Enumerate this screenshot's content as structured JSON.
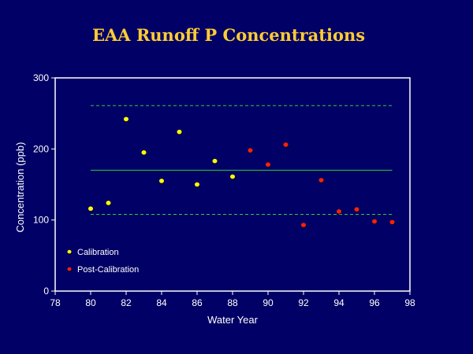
{
  "chart_data": {
    "type": "scatter",
    "title": "EAA Runoff P Concentrations",
    "xlabel": "Water Year",
    "ylabel": "Concentration (ppb)",
    "xlim": [
      78,
      98
    ],
    "ylim": [
      0,
      300
    ],
    "x_ticks": [
      "78",
      "80",
      "82",
      "84",
      "86",
      "88",
      "90",
      "92",
      "94",
      "96",
      "98"
    ],
    "y_ticks": [
      "0",
      "100",
      "200",
      "300"
    ],
    "grid": false,
    "legend_position": "bottom-left",
    "series": [
      {
        "name": "Calibration",
        "color": "#ffff00",
        "x": [
          80,
          81,
          82,
          83,
          84,
          85,
          86,
          87,
          88
        ],
        "y": [
          116,
          124,
          242,
          195,
          155,
          224,
          150,
          183,
          161
        ]
      },
      {
        "name": "Post-Calibration",
        "color": "#ff2200",
        "x": [
          89,
          90,
          91,
          92,
          93,
          94,
          95,
          96,
          97
        ],
        "y": [
          198,
          178,
          206,
          93,
          156,
          112,
          115,
          98,
          97
        ]
      }
    ],
    "reference_lines": [
      {
        "style": "solid",
        "color": "#33cc33",
        "x": [
          80,
          97
        ],
        "y": 170
      },
      {
        "style": "dashed",
        "color": "#33cc33",
        "x": [
          80,
          97
        ],
        "y": 261
      },
      {
        "style": "dashed",
        "color": "#33cc33",
        "x": [
          80,
          97
        ],
        "y": 108
      }
    ]
  }
}
